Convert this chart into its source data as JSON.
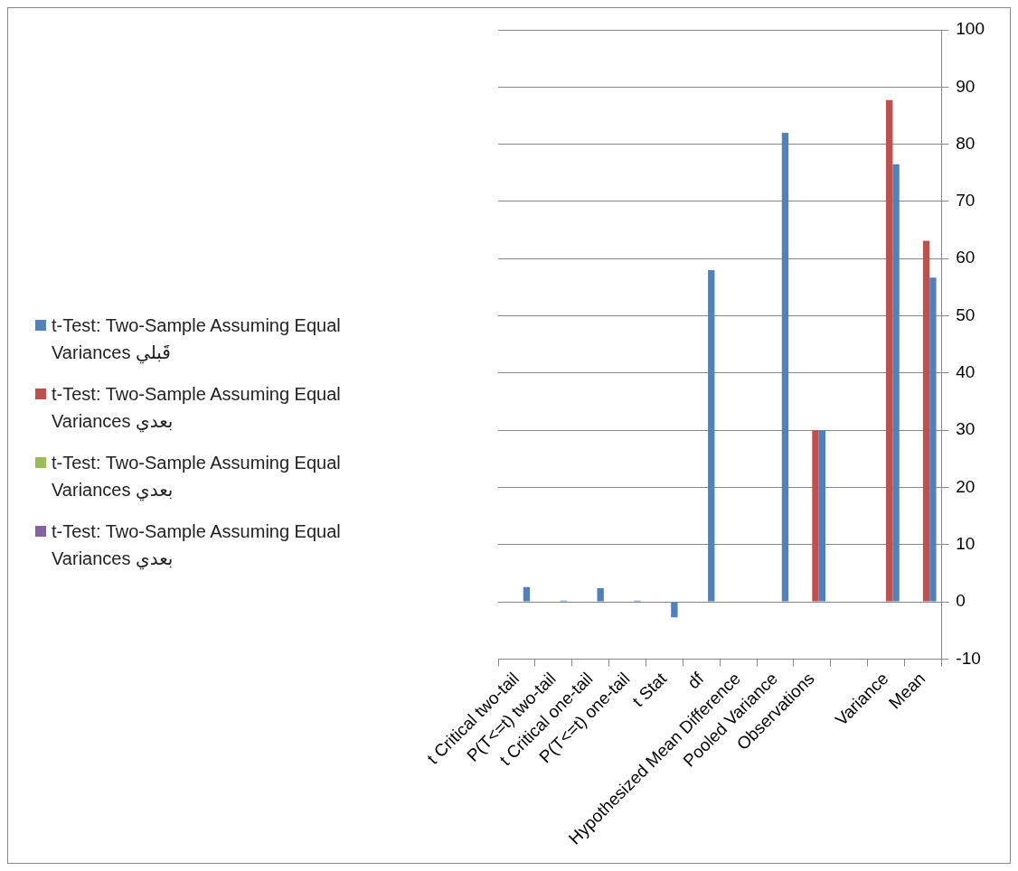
{
  "chart_data": {
    "type": "bar",
    "categories": [
      "t Critical two-tail",
      "P(T<=t) two-tail",
      "t Critical one-tail",
      "P(T<=t) one-tail",
      "t Stat",
      "df",
      "Hypothesized Mean Difference",
      "Pooled Variance",
      "Observations",
      null,
      "Variance",
      "Mean"
    ],
    "series": [
      {
        "name": "t-Test: Two-Sample Assuming Equal Variances قَبلي",
        "color": "#4f81bd",
        "values": [
          2.6,
          0.2,
          2.4,
          0.2,
          -2.7,
          58,
          0,
          82,
          30,
          null,
          76.5,
          56.7
        ]
      },
      {
        "name": "t-Test: Two-Sample Assuming Equal Variances بعدي",
        "color": "#c0504d",
        "values": [
          null,
          null,
          null,
          null,
          null,
          null,
          null,
          null,
          30,
          null,
          87.7,
          63.1
        ]
      },
      {
        "name": "t-Test: Two-Sample Assuming Equal Variances بعدي",
        "color": "#9bbb59",
        "values": [
          null,
          null,
          null,
          null,
          null,
          null,
          null,
          null,
          null,
          null,
          null,
          null
        ]
      },
      {
        "name": "t-Test: Two-Sample Assuming Equal Variances بعدي",
        "color": "#8064a2",
        "values": [
          null,
          null,
          null,
          null,
          null,
          null,
          null,
          null,
          null,
          null,
          null,
          null
        ]
      }
    ],
    "ylim": [
      -10,
      100
    ],
    "yticks": [
      -10,
      0,
      10,
      20,
      30,
      40,
      50,
      60,
      70,
      80,
      90,
      100
    ],
    "grid": "y",
    "legend": "left"
  }
}
